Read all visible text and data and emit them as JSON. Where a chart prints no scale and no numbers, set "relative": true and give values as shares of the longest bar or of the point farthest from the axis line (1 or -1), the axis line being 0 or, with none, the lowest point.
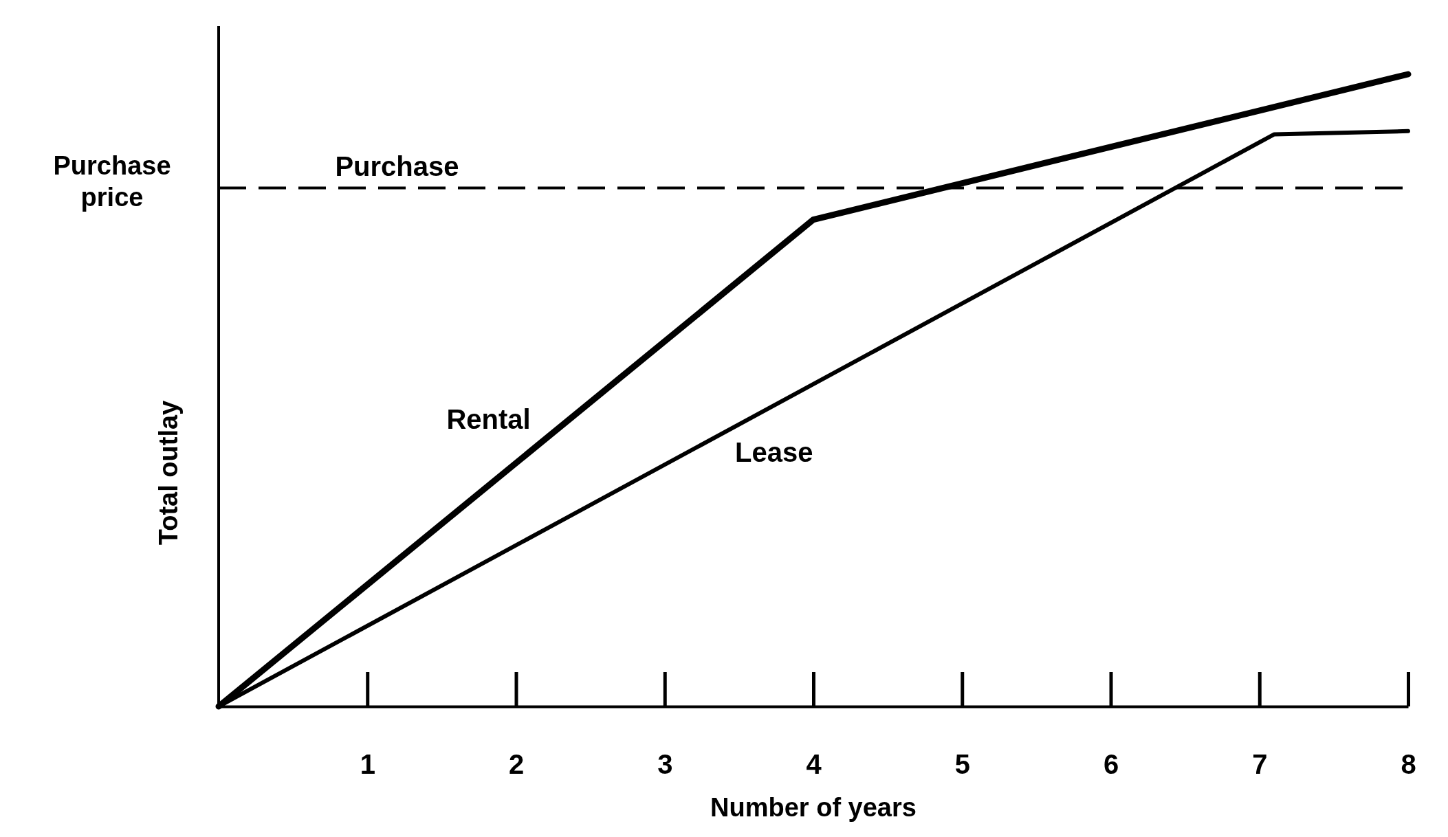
{
  "chart_data": {
    "type": "line",
    "xlabel": "Number of years",
    "ylabel": "Total outlay",
    "relative": true,
    "series": [
      {
        "name": "Rental",
        "color": "#000000",
        "x": [
          0,
          4,
          8
        ],
        "values": [
          0,
          0.77,
          1
        ]
      },
      {
        "name": "Lease",
        "color": "#000000",
        "x": [
          0,
          7.1,
          8
        ],
        "values": [
          0,
          0.905,
          0.91
        ]
      }
    ],
    "xlim": [
      0,
      8
    ],
    "xticks": [
      1,
      2,
      3,
      4,
      5,
      6,
      7,
      8
    ],
    "ref_lines": [
      {
        "axis": "y",
        "value": 0.82,
        "label": "Purchase price",
        "color": "#000000",
        "line_style": "dashed"
      }
    ],
    "annotations": [
      {
        "text": "Purchase",
        "x": 1.2,
        "y": 0.82
      }
    ],
    "grid": false,
    "marker": "none"
  }
}
